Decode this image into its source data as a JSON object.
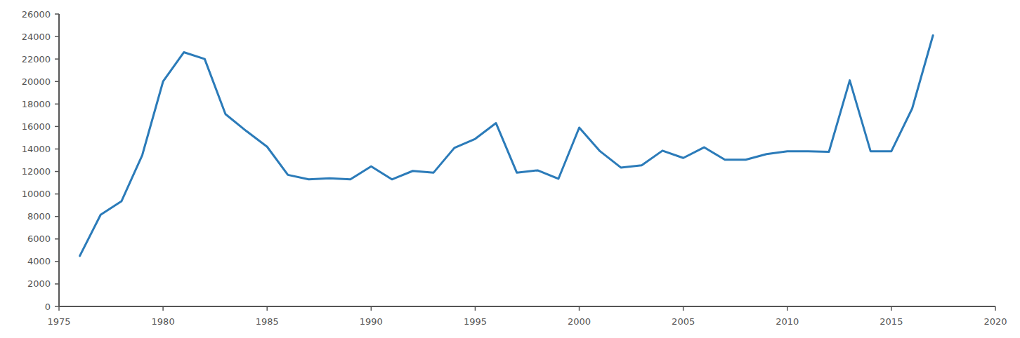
{
  "chart_data": {
    "type": "line",
    "color": "#2b7bb9",
    "x": [
      1976,
      1977,
      1978,
      1979,
      1980,
      1981,
      1982,
      1983,
      1984,
      1985,
      1986,
      1987,
      1988,
      1989,
      1990,
      1991,
      1992,
      1993,
      1994,
      1995,
      1996,
      1997,
      1998,
      1999,
      2000,
      2001,
      2002,
      2003,
      2004,
      2005,
      2006,
      2007,
      2008,
      2009,
      2010,
      2011,
      2012,
      2013,
      2014,
      2015,
      2016,
      2017
    ],
    "values": [
      4500,
      8150,
      9350,
      13450,
      20000,
      22600,
      22000,
      17100,
      15600,
      14200,
      11700,
      11300,
      11400,
      11300,
      12450,
      11300,
      12050,
      11900,
      14100,
      14900,
      16300,
      11900,
      12100,
      11350,
      15900,
      13800,
      12350,
      12550,
      13850,
      13200,
      14150,
      13050,
      13050,
      13550,
      13800,
      13800,
      13750,
      20100,
      13800,
      13800,
      17600,
      24100
    ],
    "xlim": [
      1975,
      2020
    ],
    "xticks": [
      1975,
      1980,
      1985,
      1990,
      1995,
      2000,
      2005,
      2010,
      2015,
      2020
    ],
    "ylim": [
      0,
      26000
    ],
    "yticks": [
      0,
      2000,
      4000,
      6000,
      8000,
      10000,
      12000,
      14000,
      16000,
      18000,
      20000,
      22000,
      24000,
      26000
    ],
    "grid": false
  }
}
